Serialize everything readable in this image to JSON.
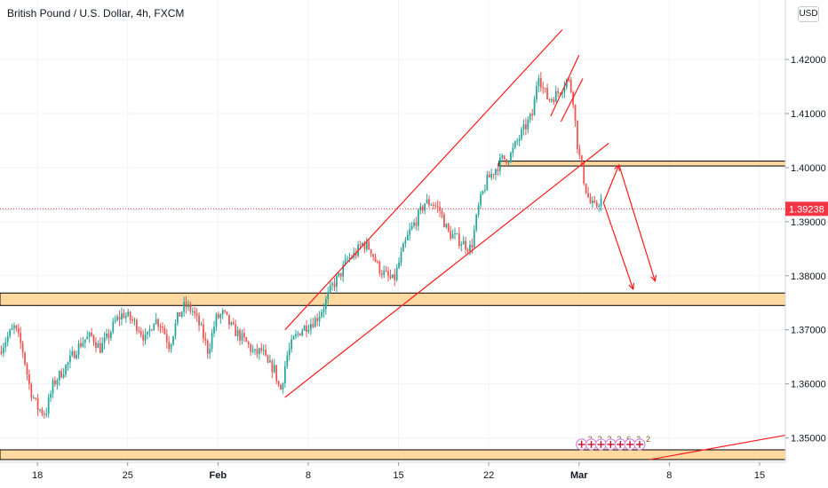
{
  "header": {
    "title": "British Pound / U.S. Dollar, 4h, FXCM",
    "currency": "USD"
  },
  "chart_data": {
    "type": "candlestick",
    "title": "British Pound / U.S. Dollar, 4h, FXCM",
    "ylim": [
      1.3455,
      1.431
    ],
    "y_ticks": [
      "1.42000",
      "1.41000",
      "1.40000",
      "1.39000",
      "1.38000",
      "1.37000",
      "1.36000",
      "1.35000"
    ],
    "y_tick_values": [
      1.42,
      1.41,
      1.4,
      1.39,
      1.38,
      1.37,
      1.36,
      1.35
    ],
    "x_ticks": [
      {
        "label": "18",
        "day": 18,
        "strong": false
      },
      {
        "label": "25",
        "day": 25,
        "strong": false
      },
      {
        "label": "Feb",
        "day": 32,
        "strong": true
      },
      {
        "label": "8",
        "day": 39,
        "strong": false
      },
      {
        "label": "15",
        "day": 46,
        "strong": false
      },
      {
        "label": "22",
        "day": 53,
        "strong": false
      },
      {
        "label": "Mar",
        "day": 60,
        "strong": true
      },
      {
        "label": "8",
        "day": 67,
        "strong": false
      },
      {
        "label": "15",
        "day": 74,
        "strong": false
      }
    ],
    "xlim": [
      15.1,
      76.0
    ],
    "current_price": 1.39238,
    "current_price_label": "1.39238",
    "candles_from_day": 15.2,
    "candle_step_days": 0.1667,
    "anchors": [
      [
        15.2,
        1.366
      ],
      [
        15.8,
        1.3685
      ],
      [
        16.4,
        1.3705
      ],
      [
        17.0,
        1.3665
      ],
      [
        17.6,
        1.359
      ],
      [
        18.2,
        1.3555
      ],
      [
        18.8,
        1.3545
      ],
      [
        19.4,
        1.36
      ],
      [
        20.0,
        1.362
      ],
      [
        20.6,
        1.364
      ],
      [
        21.2,
        1.3665
      ],
      [
        21.8,
        1.3682
      ],
      [
        22.4,
        1.3688
      ],
      [
        23.0,
        1.3665
      ],
      [
        23.6,
        1.3685
      ],
      [
        24.2,
        1.3715
      ],
      [
        24.8,
        1.373
      ],
      [
        25.4,
        1.372
      ],
      [
        26.0,
        1.3705
      ],
      [
        26.6,
        1.368
      ],
      [
        27.2,
        1.372
      ],
      [
        27.8,
        1.371
      ],
      [
        28.4,
        1.367
      ],
      [
        29.0,
        1.372
      ],
      [
        29.6,
        1.3745
      ],
      [
        30.2,
        1.3735
      ],
      [
        30.8,
        1.3705
      ],
      [
        31.4,
        1.366
      ],
      [
        32.0,
        1.372
      ],
      [
        32.6,
        1.373
      ],
      [
        33.2,
        1.3705
      ],
      [
        33.8,
        1.369
      ],
      [
        34.4,
        1.3675
      ],
      [
        35.0,
        1.3655
      ],
      [
        35.6,
        1.3662
      ],
      [
        36.0,
        1.3635
      ],
      [
        36.5,
        1.363
      ],
      [
        37.0,
        1.3585
      ],
      [
        37.5,
        1.365
      ],
      [
        38.0,
        1.368
      ],
      [
        38.6,
        1.37
      ],
      [
        39.2,
        1.371
      ],
      [
        39.8,
        1.372
      ],
      [
        40.4,
        1.3745
      ],
      [
        41.0,
        1.378
      ],
      [
        41.6,
        1.38
      ],
      [
        42.2,
        1.383
      ],
      [
        42.8,
        1.384
      ],
      [
        43.4,
        1.386
      ],
      [
        44.0,
        1.385
      ],
      [
        44.6,
        1.3815
      ],
      [
        45.2,
        1.38
      ],
      [
        45.8,
        1.379
      ],
      [
        46.4,
        1.384
      ],
      [
        47.0,
        1.388
      ],
      [
        47.6,
        1.3905
      ],
      [
        48.2,
        1.3935
      ],
      [
        48.8,
        1.3935
      ],
      [
        49.4,
        1.392
      ],
      [
        50.0,
        1.388
      ],
      [
        50.6,
        1.387
      ],
      [
        51.2,
        1.386
      ],
      [
        51.8,
        1.385
      ],
      [
        52.4,
        1.393
      ],
      [
        53.0,
        1.3975
      ],
      [
        53.6,
        1.3995
      ],
      [
        54.2,
        1.4015
      ],
      [
        54.8,
        1.402
      ],
      [
        55.4,
        1.405
      ],
      [
        56.0,
        1.4075
      ],
      [
        56.6,
        1.41
      ],
      [
        57.0,
        1.418
      ],
      [
        57.3,
        1.415
      ],
      [
        57.8,
        1.4125
      ],
      [
        58.4,
        1.4135
      ],
      [
        58.9,
        1.415
      ],
      [
        59.3,
        1.4165
      ],
      [
        59.7,
        1.413
      ],
      [
        60.0,
        1.405
      ],
      [
        60.3,
        1.4005
      ],
      [
        60.7,
        1.396
      ],
      [
        61.0,
        1.3935
      ],
      [
        61.4,
        1.3925
      ],
      [
        61.8,
        1.394
      ]
    ],
    "zones": [
      {
        "from": 1.4003,
        "to": 1.4012,
        "x_from_day": 53.8
      },
      {
        "from": 1.3745,
        "to": 1.3768
      },
      {
        "from": 1.346,
        "to": 1.3478
      }
    ],
    "trendlines": [
      {
        "from": [
          37.2,
          1.37
        ],
        "to": [
          58.7,
          1.4255
        ]
      },
      {
        "from": [
          37.2,
          1.3575
        ],
        "to": [
          62.3,
          1.4045
        ]
      },
      {
        "from": [
          57.8,
          1.4095
        ],
        "to": [
          60.0,
          1.4208
        ]
      },
      {
        "from": [
          58.6,
          1.4085
        ],
        "to": [
          60.3,
          1.4165
        ]
      },
      {
        "from": [
          65.5,
          1.346
        ],
        "to": [
          76.0,
          1.3505
        ]
      }
    ],
    "projection_arrows": [
      {
        "from": [
          61.9,
          1.3935
        ],
        "to": [
          64.2,
          1.3775
        ]
      },
      {
        "from": [
          61.9,
          1.3935
        ],
        "to": [
          63.1,
          1.4005
        ]
      },
      {
        "from": [
          63.1,
          1.4005
        ],
        "to": [
          65.9,
          1.379
        ]
      }
    ],
    "event_markers": {
      "day_from": 60.2,
      "day_to": 64.7,
      "y_value": 1.3488,
      "labels": [
        "2",
        "2",
        "2",
        "2",
        "6",
        "3",
        "2"
      ]
    },
    "colors": {
      "up": "#26a69a",
      "down": "#ef5350",
      "line": "#ff1a1a",
      "zone_fill": "#ffd9a0",
      "zone_border": "#000000",
      "price_label": "#f23645"
    }
  }
}
